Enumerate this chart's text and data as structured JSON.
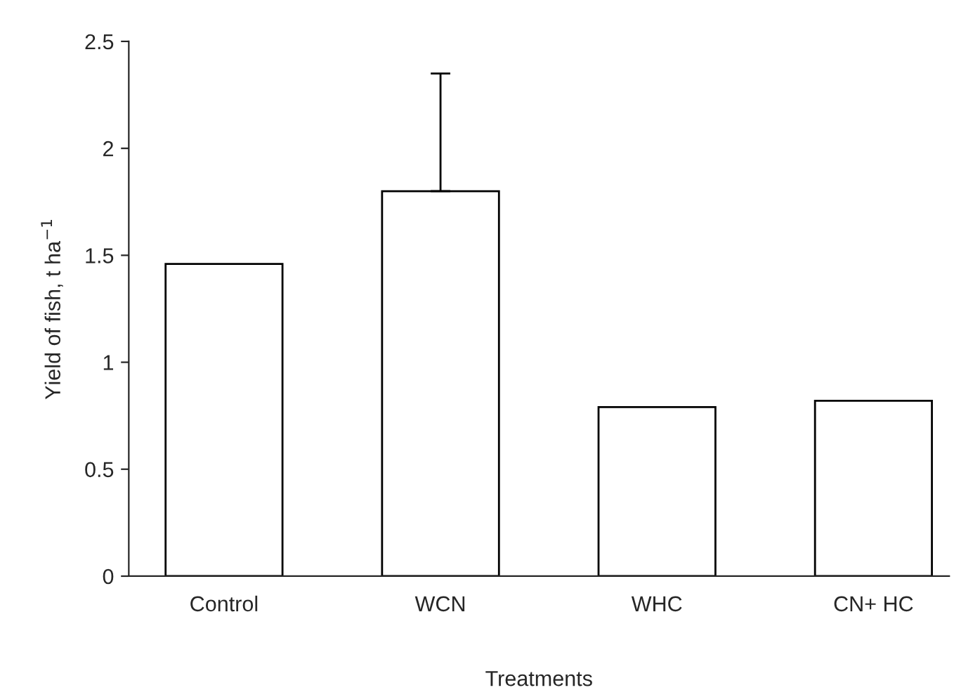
{
  "chart_data": {
    "type": "bar",
    "categories": [
      "Control",
      "WCN",
      "WHC",
      "CN+ HC"
    ],
    "values": [
      1.46,
      1.8,
      0.79,
      0.82
    ],
    "errors": [
      null,
      [
        1.8,
        2.35
      ],
      null,
      null
    ],
    "color": "#ffffff",
    "xlabel": "Treatments",
    "ylabel": "Yield of fish, t ha$^{−1}$",
    "ylim": [
      0,
      2.5
    ],
    "yticks": [
      0,
      0.5,
      1,
      1.5,
      2,
      2.5
    ],
    "grid": false,
    "legend": false
  }
}
